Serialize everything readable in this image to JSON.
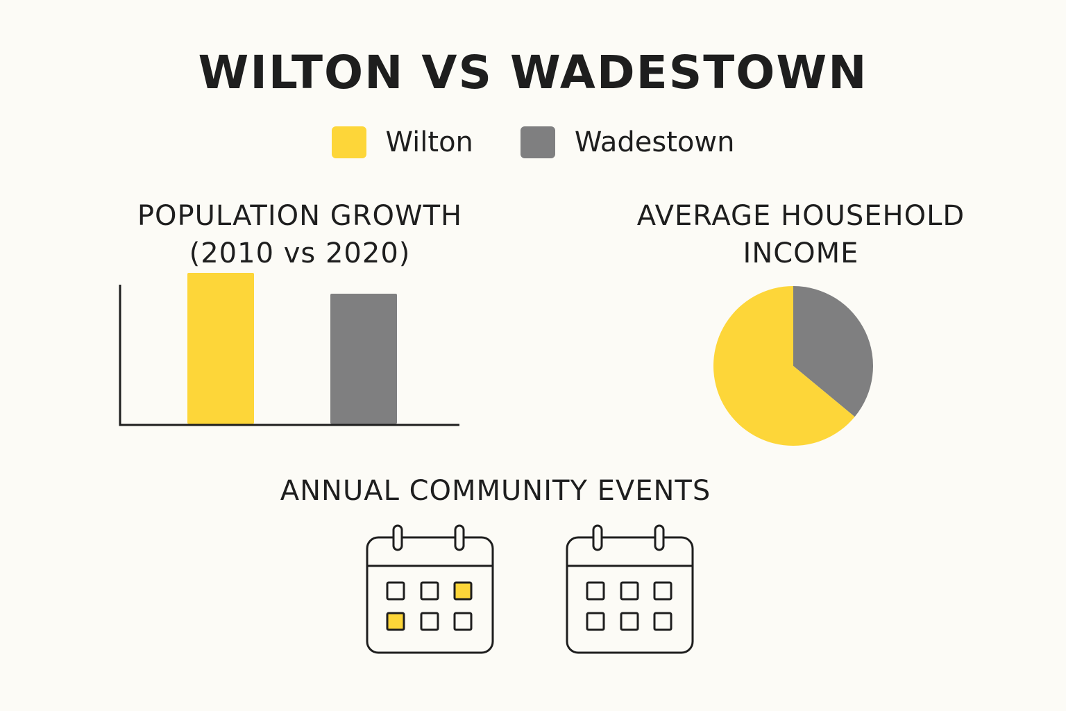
{
  "title": "WILTON VS WADESTOWN",
  "legend": [
    {
      "label": "Wilton",
      "color": "#fdd639"
    },
    {
      "label": "Wadestown",
      "color": "#7f7f80"
    }
  ],
  "colors": {
    "accent": "#fdd639",
    "secondary": "#7f7f80",
    "axis": "#1e1e1e",
    "background": "#fcfbf6"
  },
  "chart_data": [
    {
      "type": "bar",
      "title_lines": [
        "POPULATION GROWTH",
        "(2010 vs 2020)"
      ],
      "categories": [
        "Wilton",
        "Wadestown"
      ],
      "values": [
        87,
        75
      ],
      "ylim": [
        0,
        100
      ],
      "colors": [
        "#fdd639",
        "#7f7f80"
      ],
      "axis_ticks_shown": false,
      "grid": false
    },
    {
      "type": "pie",
      "title_lines": [
        "AVERAGE HOUSEHOLD",
        "INCOME"
      ],
      "labels": [
        "Wilton",
        "Wadestown"
      ],
      "values": [
        64,
        36
      ],
      "colors": [
        "#fdd639",
        "#7f7f80"
      ]
    }
  ],
  "events": {
    "title": "ANNUAL COMMUNITY EVENTS",
    "calendars": [
      {
        "name": "Wilton",
        "highlighted": [
          false,
          false,
          true,
          true,
          false,
          false
        ]
      },
      {
        "name": "Wadestown",
        "highlighted": [
          false,
          false,
          false,
          false,
          false,
          false
        ]
      }
    ]
  }
}
